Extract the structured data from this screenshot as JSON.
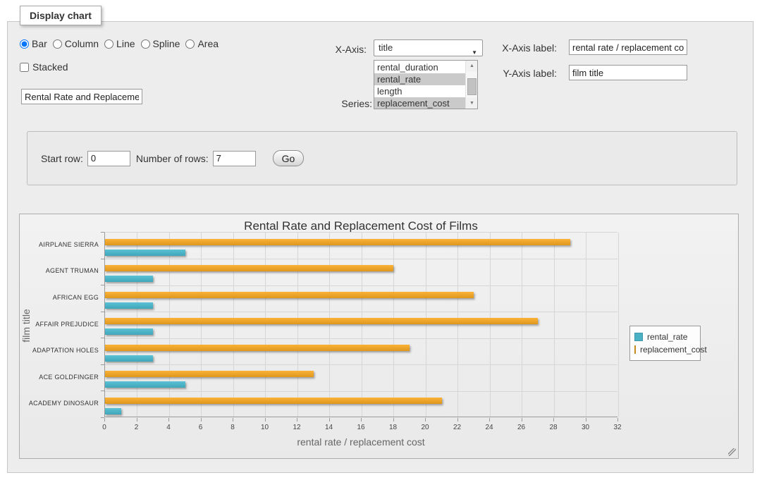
{
  "icons": {
    "select_dropdown_arrow": "▼",
    "scrollbar_up_arrow": "▲",
    "scrollbar_down_arrow": "▼"
  },
  "panel": {
    "legend_title": "Display chart",
    "chart_types": [
      {
        "label": "Bar",
        "checked": true
      },
      {
        "label": "Column",
        "checked": false
      },
      {
        "label": "Line",
        "checked": false
      },
      {
        "label": "Spline",
        "checked": false
      },
      {
        "label": "Area",
        "checked": false
      }
    ],
    "stacked": {
      "label": "Stacked",
      "checked": false
    },
    "title_input": {
      "value": "Rental Rate and Replacement Cost of Films"
    },
    "x_axis": {
      "label": "X-Axis:",
      "selected": "title"
    },
    "series_select": {
      "label": "Series:",
      "options": [
        {
          "label": "rental_duration",
          "selected": false
        },
        {
          "label": "rental_rate",
          "selected": true
        },
        {
          "label": "length",
          "selected": false
        },
        {
          "label": "replacement_cost",
          "selected": true
        }
      ]
    },
    "x_axis_label_field": {
      "label": "X-Axis label:",
      "value": "rental rate / replacement cost"
    },
    "y_axis_label_field": {
      "label": "Y-Axis label:",
      "value": "film title"
    },
    "row_controls": {
      "start_row_label": "Start row:",
      "start_row_value": "0",
      "number_of_rows_label": "Number of rows:",
      "number_of_rows_value": "7",
      "go_label": "Go"
    }
  },
  "chart_data": {
    "type": "bar",
    "title": "Rental Rate and Replacement Cost of Films",
    "categories": [
      "AIRPLANE SIERRA",
      "AGENT TRUMAN",
      "AFRICAN EGG",
      "AFFAIR PREJUDICE",
      "ADAPTATION HOLES",
      "ACE GOLDFINGER",
      "ACADEMY DINOSAUR"
    ],
    "series": [
      {
        "name": "rental_rate",
        "color": "#4bb2c5",
        "values": [
          4.99,
          2.99,
          2.99,
          2.99,
          2.99,
          4.99,
          0.99
        ]
      },
      {
        "name": "replacement_cost",
        "color": "#eaa228",
        "values": [
          28.99,
          17.99,
          22.99,
          26.99,
          18.99,
          12.99,
          20.99
        ]
      }
    ],
    "xlabel": "rental rate / replacement cost",
    "ylabel": "film title",
    "xlim": [
      0,
      32
    ],
    "x_tick_interval": 2,
    "grid": true,
    "legend_position": "right-middle",
    "bar_order_within_group": [
      "replacement_cost",
      "rental_rate"
    ]
  }
}
